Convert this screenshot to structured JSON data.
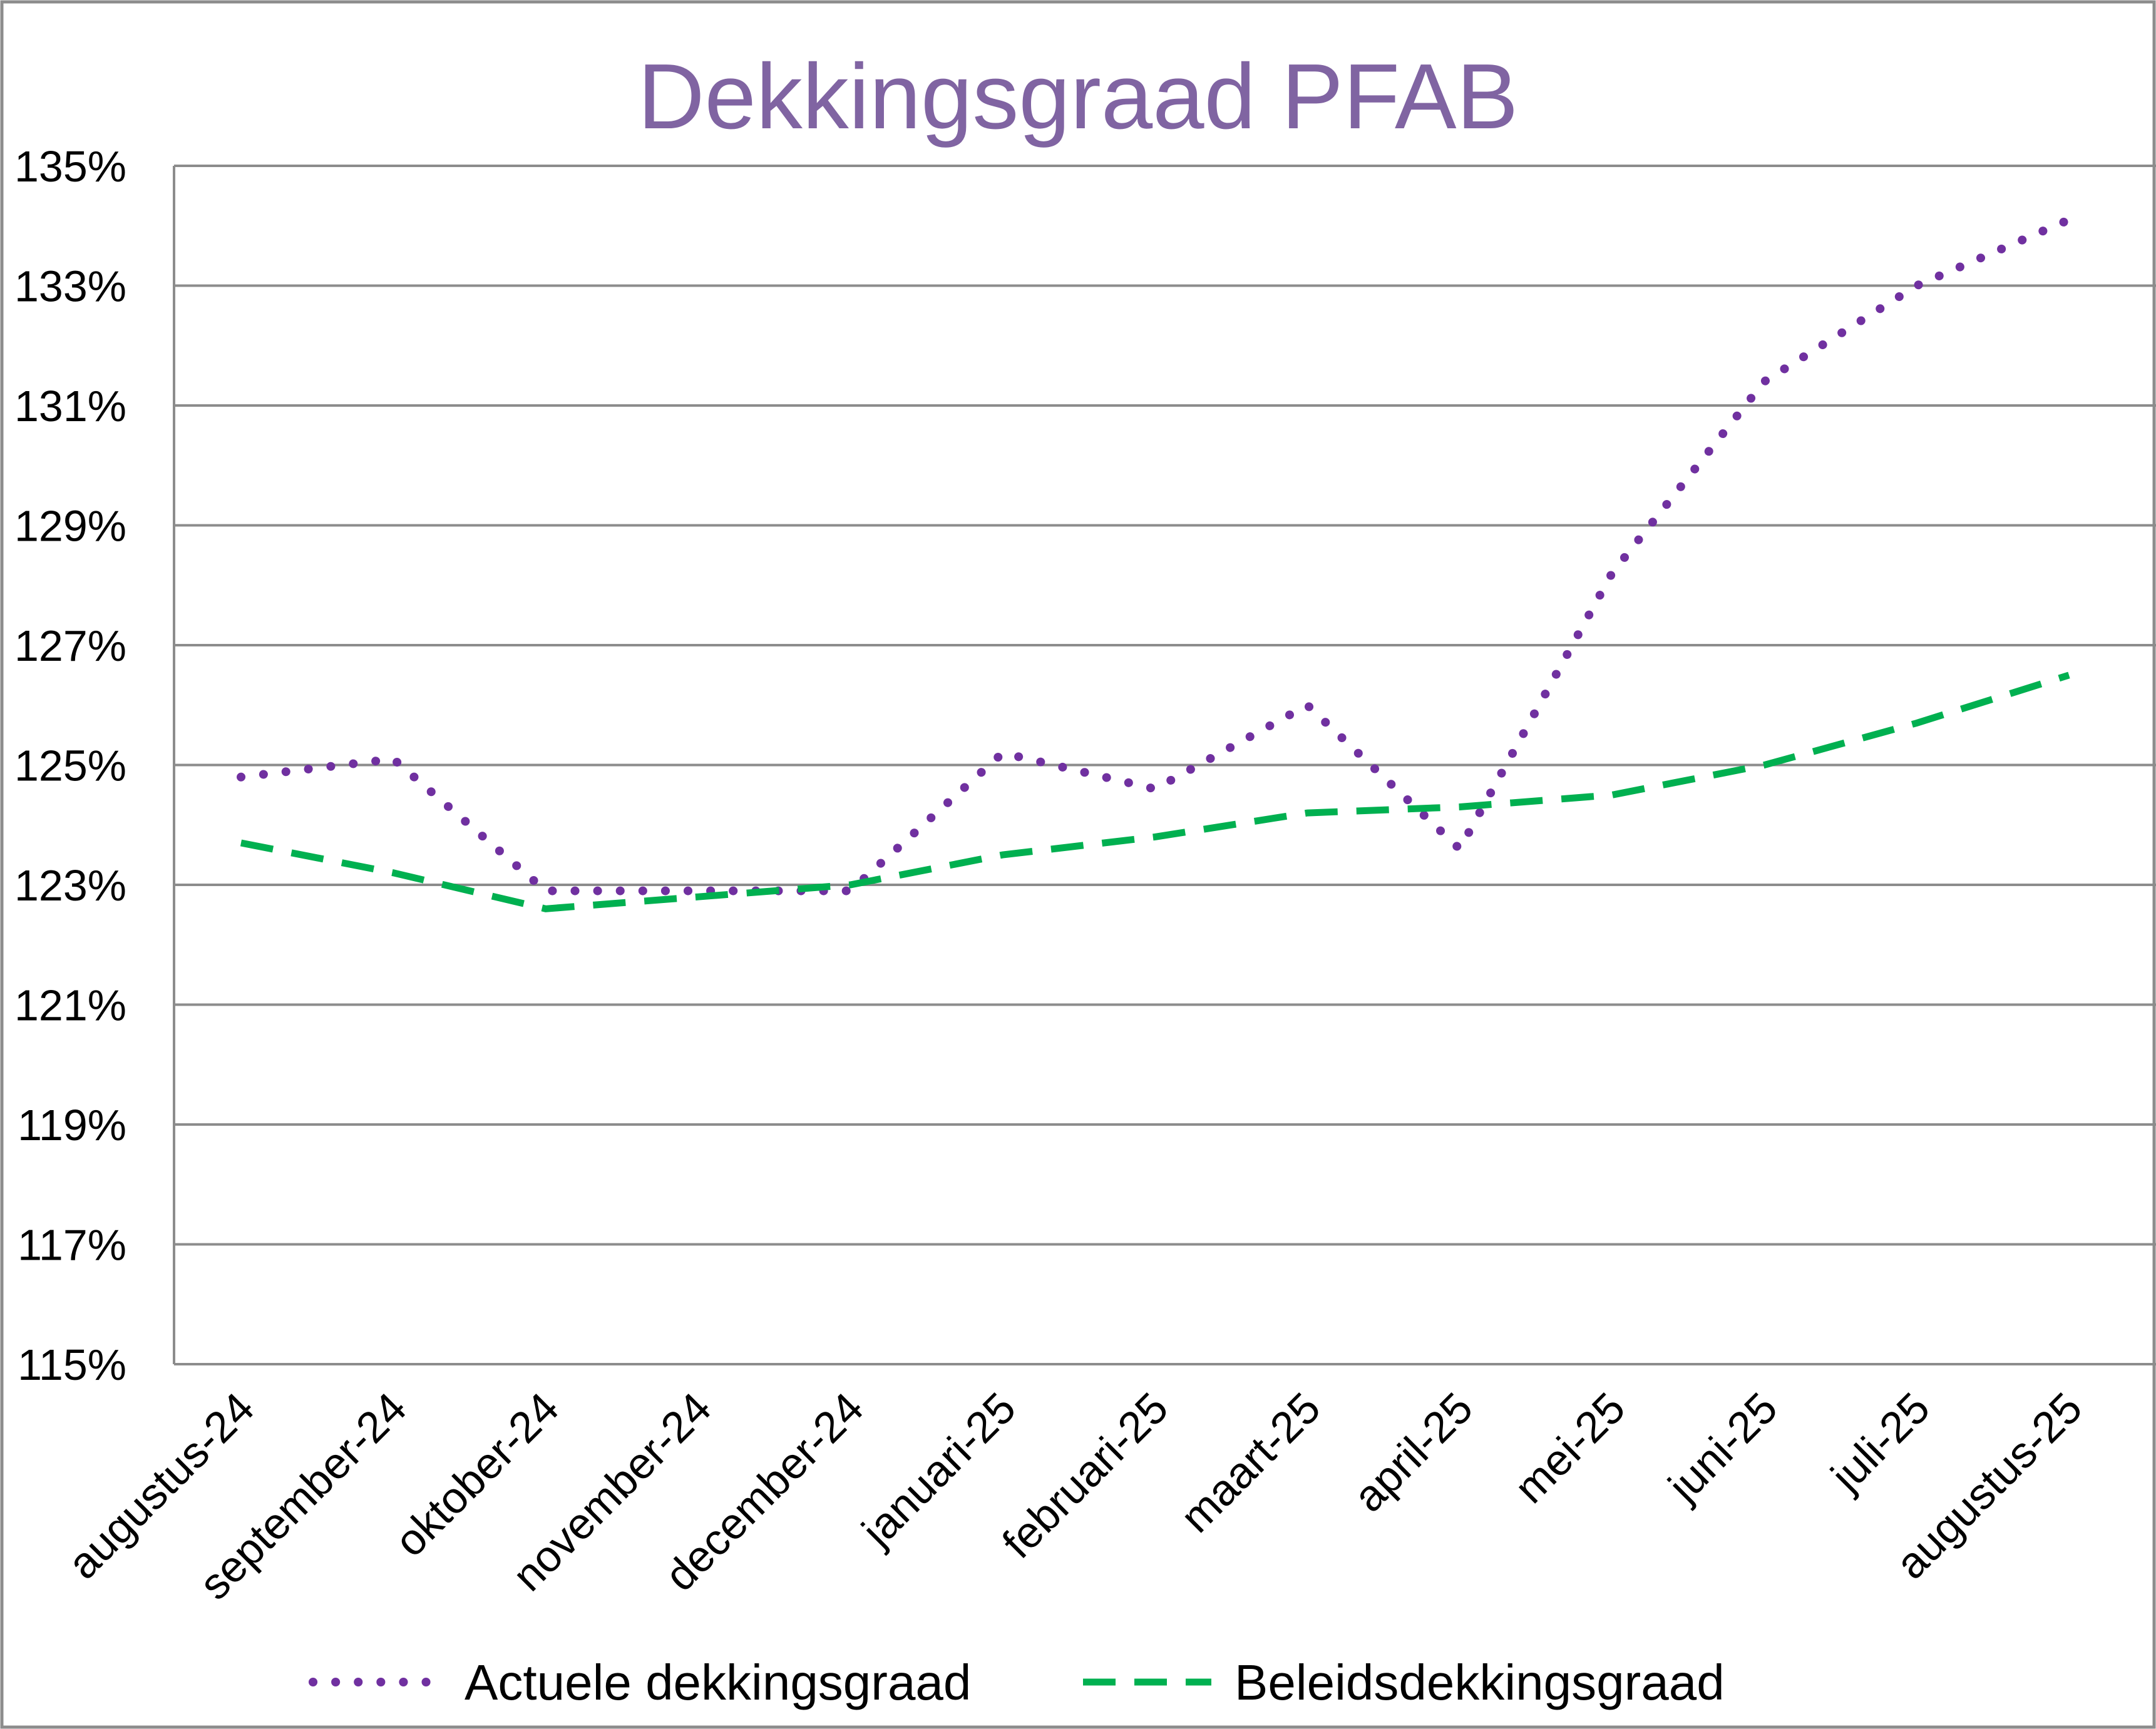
{
  "chart_data": {
    "type": "line",
    "title": "Dekkingsgraad  PFAB",
    "categories": [
      "augustus-24",
      "september-24",
      "oktober-24",
      "november-24",
      "december-24",
      "januari-25",
      "februari-25",
      "maart-25",
      "april-25",
      "mei-25",
      "juni-25",
      "juli-25",
      "augustus-25"
    ],
    "series": [
      {
        "name": "Actuele dekkingsgraad",
        "color": "#7030a0",
        "style": "dotted",
        "values": [
          124.8,
          125.1,
          122.9,
          122.9,
          122.9,
          125.2,
          124.6,
          126.0,
          123.6,
          128.2,
          131.4,
          133.0,
          134.1
        ]
      },
      {
        "name": "Beleidsdekkingsgraad",
        "color": "#00b050",
        "style": "dashed",
        "values": [
          123.7,
          123.2,
          122.6,
          122.8,
          123.0,
          123.5,
          123.8,
          124.2,
          124.3,
          124.5,
          125.0,
          125.7,
          126.5
        ]
      }
    ],
    "ylim": [
      115,
      135
    ],
    "yticks": [
      "115%",
      "117%",
      "119%",
      "121%",
      "123%",
      "125%",
      "127%",
      "129%",
      "131%",
      "133%",
      "135%"
    ],
    "title_color": "#8064a2",
    "grid": true,
    "legend_position": "bottom"
  }
}
